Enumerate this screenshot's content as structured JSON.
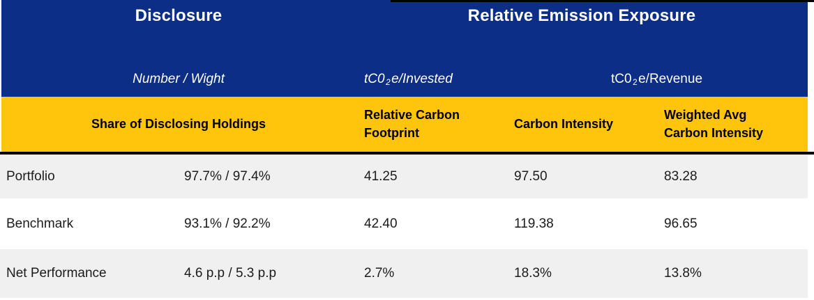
{
  "chart_data": {
    "type": "table",
    "column_groups": [
      {
        "label": "Disclosure",
        "columns": [
          "Share of Disclosing Holdings"
        ]
      },
      {
        "label": "Relative Emission Exposure",
        "columns": [
          "Relative Carbon Footprint",
          "Carbon Intensity",
          "Weighted Avg Carbon Intensity"
        ]
      }
    ],
    "units": {
      "share_of_disclosing_holdings": "Number / Wight",
      "relative_carbon_footprint": "tC02e/Invested",
      "carbon_intensity": "tC02e/Revenue",
      "weighted_avg_carbon_intensity": "tC02e/Revenue"
    },
    "rows": [
      {
        "label": "Portfolio",
        "share_of_disclosing_holdings": "97.7% / 97.4%",
        "relative_carbon_footprint": 41.25,
        "carbon_intensity": 97.5,
        "weighted_avg_carbon_intensity": 83.28
      },
      {
        "label": "Benchmark",
        "share_of_disclosing_holdings": "93.1% / 92.2%",
        "relative_carbon_footprint": 42.4,
        "carbon_intensity": 119.38,
        "weighted_avg_carbon_intensity": 96.65
      },
      {
        "label": "Net Performance",
        "share_of_disclosing_holdings": "4.6 p.p / 5.3 p.p",
        "relative_carbon_footprint": "2.7%",
        "carbon_intensity": "18.3%",
        "weighted_avg_carbon_intensity": "13.8%"
      }
    ]
  },
  "table": {
    "header_groups": [
      {
        "label": "Disclosure"
      },
      {
        "label": "Relative Emission Exposure"
      }
    ],
    "unit_row": {
      "disclosure": "Number / Wight",
      "invested": {
        "prefix": "tC0",
        "sub": "2",
        "suffix": "e/Invested"
      },
      "revenue": {
        "prefix": "tC0",
        "sub": "2",
        "suffix": "e/Revenue"
      }
    },
    "column_headers": [
      "Share of Disclosing Holdings",
      "Relative Carbon Footprint",
      "Carbon Intensity",
      "Weighted Avg Carbon Intensity"
    ],
    "rows": [
      {
        "label": "Portfolio",
        "disclosure": "97.7% / 97.4%",
        "footprint": "41.25",
        "intensity": "97.50",
        "weighted": "83.28"
      },
      {
        "label": "Benchmark",
        "disclosure": "93.1% / 92.2%",
        "footprint": "42.40",
        "intensity": "119.38",
        "weighted": "96.65"
      },
      {
        "label": "Net Performance",
        "disclosure": "4.6 p.p / 5.3 p.p",
        "footprint": "2.7%",
        "intensity": "18.3%",
        "weighted": "13.8%"
      }
    ],
    "colors": {
      "header_blue": "#0C2E86",
      "header_yellow": "#FFC40C",
      "stripe_gray": "#F0F0F0",
      "divider": "#000000",
      "header_text_white": "#FFFFFF",
      "body_text": "#1B1B1B"
    }
  }
}
